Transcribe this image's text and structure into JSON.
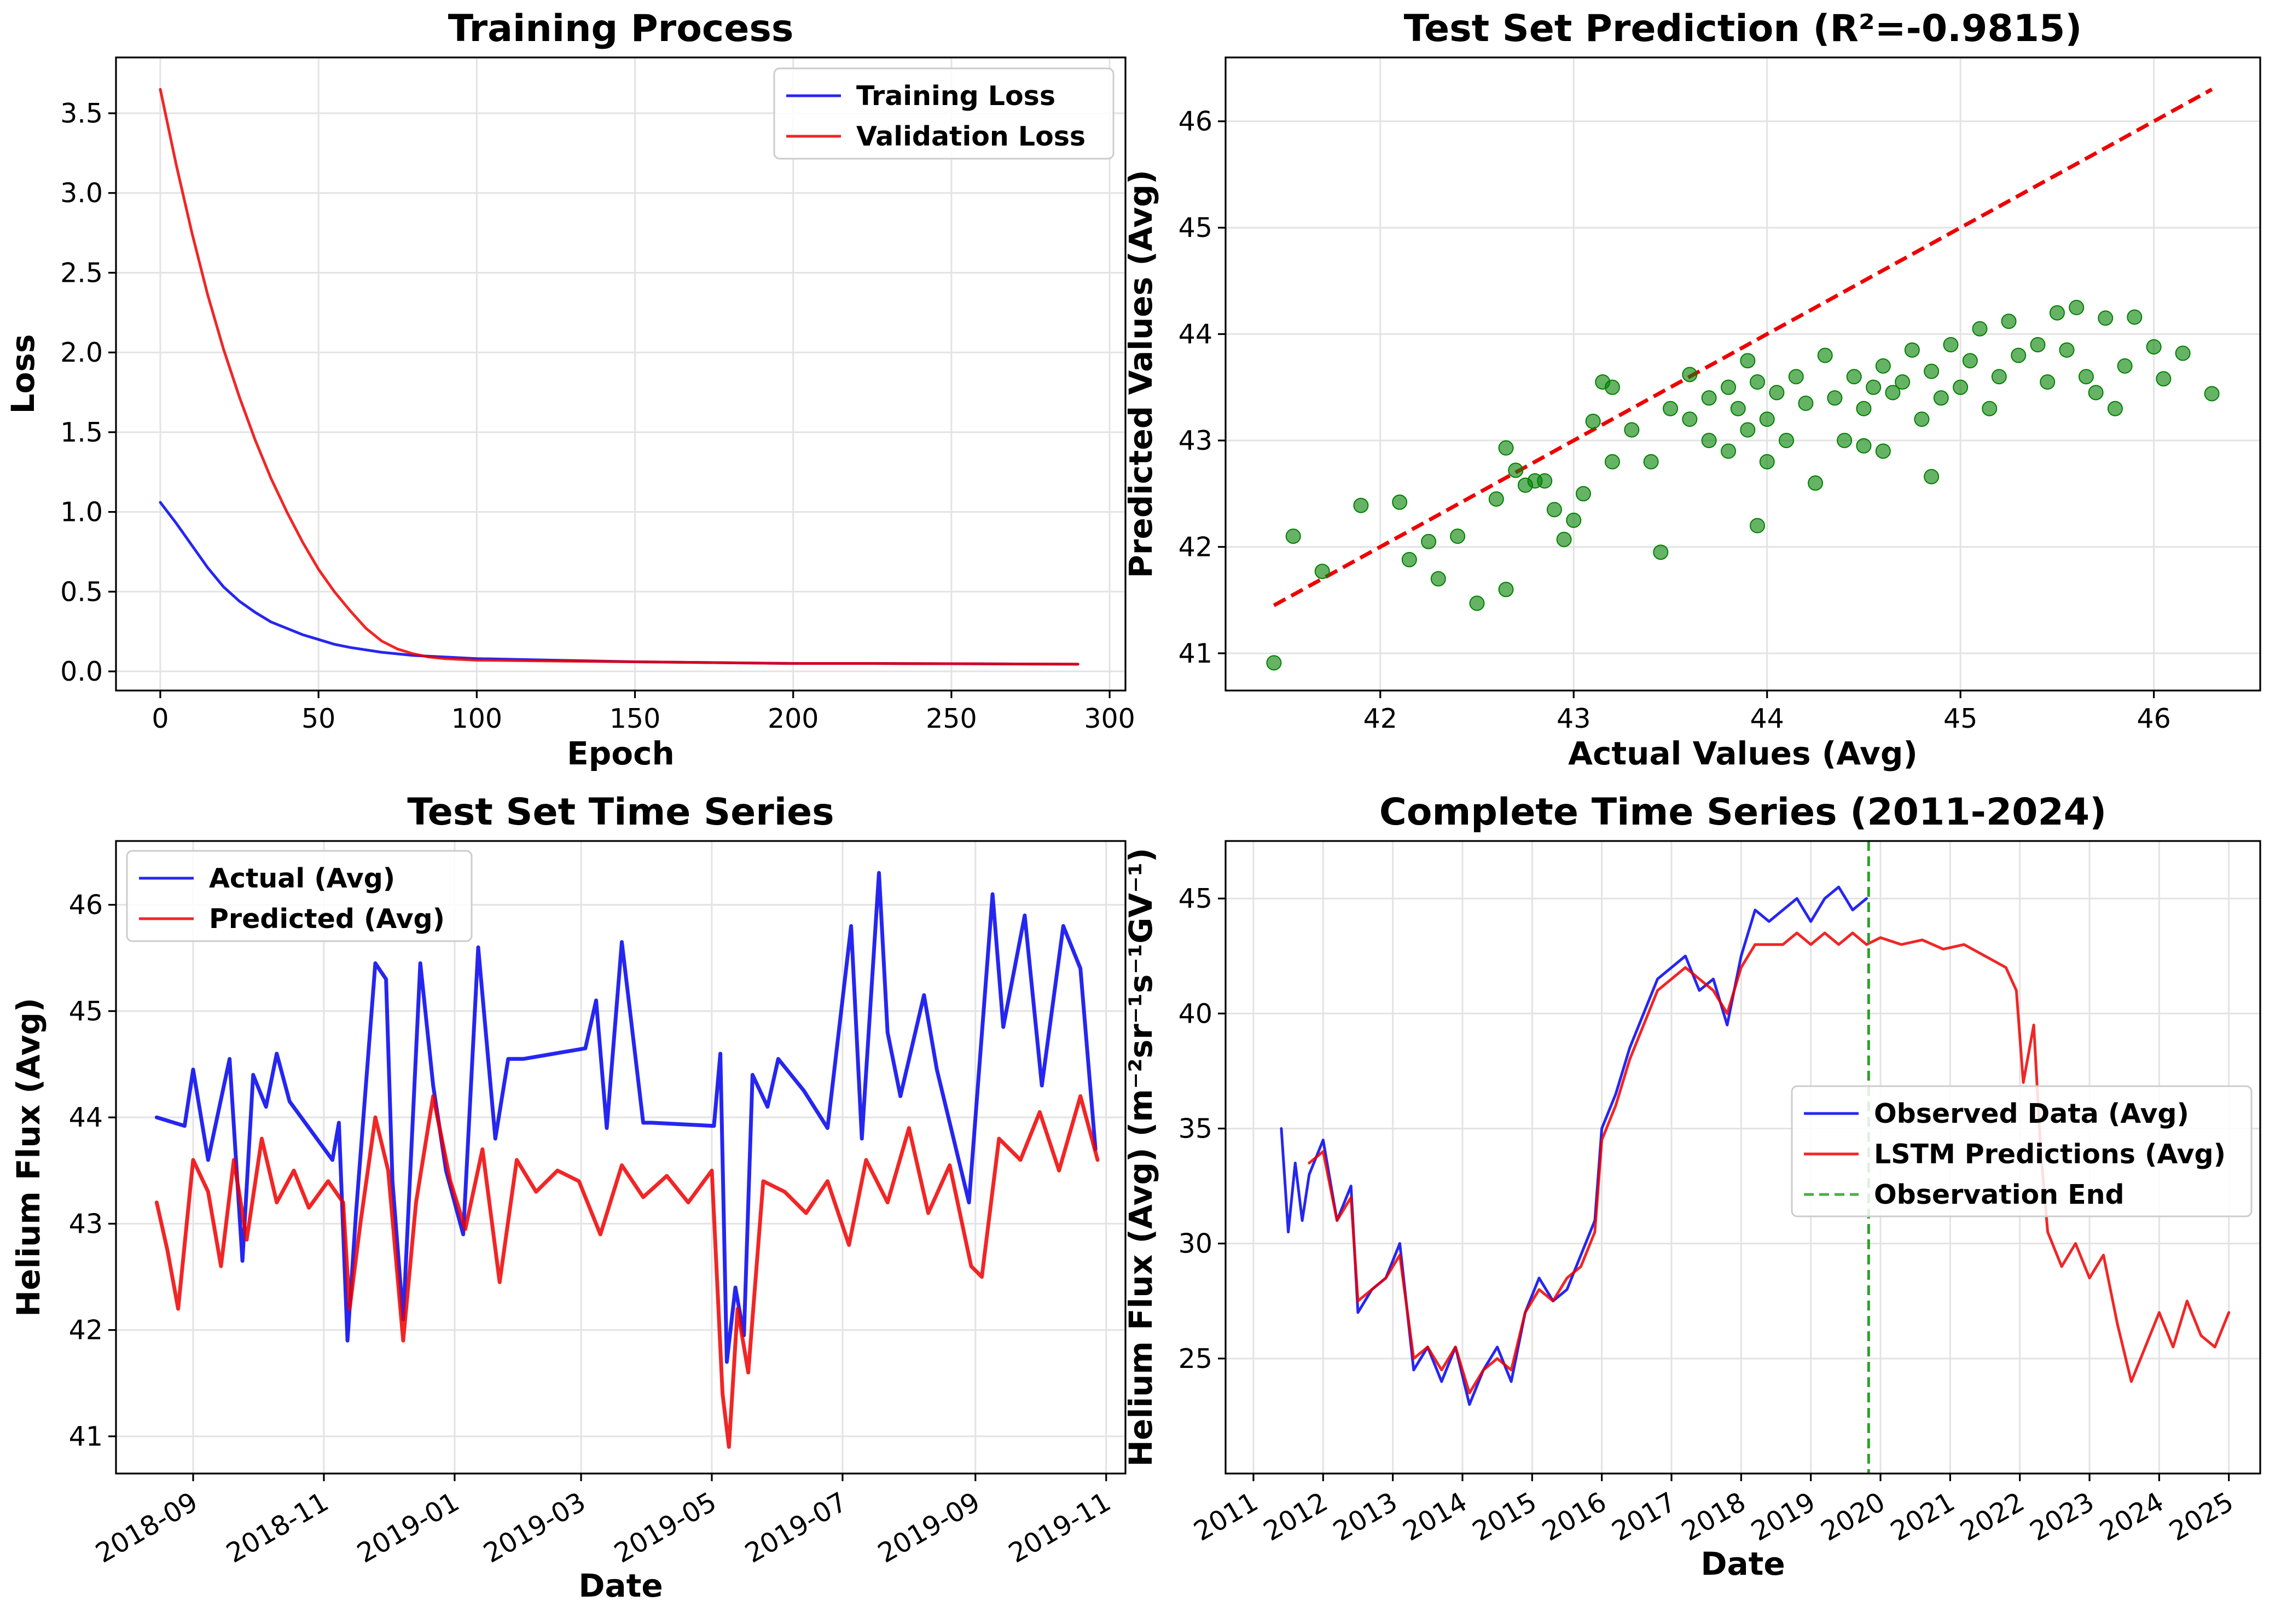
{
  "chart_data": [
    {
      "type": "line",
      "title": "Training Process",
      "xlabel": "Epoch",
      "ylabel": "Loss",
      "xlim": [
        -14,
        305
      ],
      "ylim": [
        -0.12,
        3.85
      ],
      "xticks": [
        0,
        50,
        100,
        150,
        200,
        250,
        300
      ],
      "yticks": [
        0.0,
        0.5,
        1.0,
        1.5,
        2.0,
        2.5,
        3.0,
        3.5
      ],
      "grid": true,
      "legend_position": "top-right",
      "series": [
        {
          "name": "Training Loss",
          "color": "#0000ee",
          "x": [
            0,
            5,
            10,
            15,
            20,
            25,
            30,
            35,
            40,
            45,
            50,
            55,
            60,
            70,
            80,
            90,
            100,
            125,
            150,
            175,
            200,
            225,
            250,
            275,
            290
          ],
          "values": [
            1.06,
            0.93,
            0.79,
            0.65,
            0.53,
            0.44,
            0.37,
            0.31,
            0.27,
            0.23,
            0.2,
            0.17,
            0.15,
            0.12,
            0.1,
            0.09,
            0.08,
            0.07,
            0.06,
            0.055,
            0.05,
            0.05,
            0.048,
            0.046,
            0.045
          ]
        },
        {
          "name": "Validation Loss",
          "color": "#ee0000",
          "x": [
            0,
            5,
            10,
            15,
            20,
            25,
            30,
            35,
            40,
            45,
            50,
            55,
            60,
            65,
            70,
            75,
            80,
            85,
            90,
            100,
            125,
            150,
            175,
            200,
            225,
            250,
            275,
            290
          ],
          "values": [
            3.65,
            3.18,
            2.75,
            2.36,
            2.02,
            1.72,
            1.45,
            1.21,
            1.0,
            0.81,
            0.64,
            0.5,
            0.38,
            0.27,
            0.19,
            0.14,
            0.11,
            0.09,
            0.08,
            0.07,
            0.065,
            0.06,
            0.055,
            0.05,
            0.05,
            0.048,
            0.046,
            0.045
          ]
        }
      ]
    },
    {
      "type": "scatter",
      "title": "Test Set Prediction (R²=-0.9815)",
      "xlabel": "Actual Values (Avg)",
      "ylabel": "Predicted Values (Avg)",
      "xlim": [
        41.2,
        46.55
      ],
      "ylim": [
        40.65,
        46.6
      ],
      "xticks": [
        42,
        43,
        44,
        45,
        46
      ],
      "yticks": [
        41,
        42,
        43,
        44,
        45,
        46
      ],
      "grid": true,
      "point_color": "#008000",
      "reference_line": {
        "x": [
          41.45,
          46.3
        ],
        "y": [
          41.45,
          46.3
        ],
        "color": "#ee0000",
        "style": "dashed"
      },
      "points": [
        [
          41.45,
          40.91
        ],
        [
          41.55,
          42.1
        ],
        [
          41.7,
          41.77
        ],
        [
          41.9,
          42.39
        ],
        [
          42.1,
          42.42
        ],
        [
          42.15,
          41.88
        ],
        [
          42.25,
          42.05
        ],
        [
          42.3,
          41.7
        ],
        [
          42.4,
          42.1
        ],
        [
          42.5,
          41.47
        ],
        [
          42.6,
          42.45
        ],
        [
          42.65,
          41.6
        ],
        [
          42.65,
          42.93
        ],
        [
          42.7,
          42.72
        ],
        [
          42.75,
          42.58
        ],
        [
          42.8,
          42.62
        ],
        [
          42.85,
          42.62
        ],
        [
          42.9,
          42.35
        ],
        [
          42.95,
          42.07
        ],
        [
          43.0,
          42.25
        ],
        [
          43.05,
          42.5
        ],
        [
          43.1,
          43.18
        ],
        [
          43.15,
          43.55
        ],
        [
          43.2,
          42.8
        ],
        [
          43.2,
          43.5
        ],
        [
          43.3,
          43.1
        ],
        [
          43.4,
          42.8
        ],
        [
          43.45,
          41.95
        ],
        [
          43.5,
          43.3
        ],
        [
          43.6,
          43.2
        ],
        [
          43.6,
          43.62
        ],
        [
          43.7,
          43.0
        ],
        [
          43.7,
          43.4
        ],
        [
          43.8,
          43.5
        ],
        [
          43.8,
          42.9
        ],
        [
          43.85,
          43.3
        ],
        [
          43.9,
          43.1
        ],
        [
          43.9,
          43.75
        ],
        [
          43.95,
          42.2
        ],
        [
          43.95,
          43.55
        ],
        [
          44.0,
          43.2
        ],
        [
          44.0,
          42.8
        ],
        [
          44.05,
          43.45
        ],
        [
          44.1,
          43.0
        ],
        [
          44.15,
          43.6
        ],
        [
          44.2,
          43.35
        ],
        [
          44.25,
          42.6
        ],
        [
          44.3,
          43.8
        ],
        [
          44.35,
          43.4
        ],
        [
          44.4,
          43.0
        ],
        [
          44.45,
          43.6
        ],
        [
          44.5,
          42.95
        ],
        [
          44.5,
          43.3
        ],
        [
          44.55,
          43.5
        ],
        [
          44.6,
          43.7
        ],
        [
          44.6,
          42.9
        ],
        [
          44.65,
          43.45
        ],
        [
          44.7,
          43.55
        ],
        [
          44.75,
          43.85
        ],
        [
          44.8,
          43.2
        ],
        [
          44.85,
          43.65
        ],
        [
          44.85,
          42.66
        ],
        [
          44.9,
          43.4
        ],
        [
          44.95,
          43.9
        ],
        [
          45.0,
          43.5
        ],
        [
          45.05,
          43.75
        ],
        [
          45.1,
          44.05
        ],
        [
          45.15,
          43.3
        ],
        [
          45.2,
          43.6
        ],
        [
          45.25,
          44.12
        ],
        [
          45.3,
          43.8
        ],
        [
          45.4,
          43.9
        ],
        [
          45.45,
          43.55
        ],
        [
          45.5,
          44.2
        ],
        [
          45.55,
          43.85
        ],
        [
          45.6,
          44.25
        ],
        [
          45.65,
          43.6
        ],
        [
          45.7,
          43.45
        ],
        [
          45.75,
          44.15
        ],
        [
          45.8,
          43.3
        ],
        [
          45.85,
          43.7
        ],
        [
          45.9,
          44.16
        ],
        [
          46.0,
          43.88
        ],
        [
          46.05,
          43.58
        ],
        [
          46.15,
          43.82
        ],
        [
          46.3,
          43.44
        ]
      ]
    },
    {
      "type": "line",
      "title": "Test Set Time Series",
      "xlabel": "Date",
      "ylabel": "Helium Flux (Avg)",
      "xlim": [
        "2018-07-27",
        "2019-11-10"
      ],
      "ylim": [
        40.65,
        46.6
      ],
      "xticks": [
        "2018-09",
        "2018-11",
        "2019-01",
        "2019-03",
        "2019-05",
        "2019-07",
        "2019-09",
        "2019-11"
      ],
      "yticks": [
        41,
        42,
        43,
        44,
        45,
        46
      ],
      "grid": true,
      "legend_position": "top-left",
      "series": [
        {
          "name": "Actual (Avg)",
          "color": "#0000ee",
          "x": [
            "2018-08-15",
            "2018-08-28",
            "2018-09-01",
            "2018-09-08",
            "2018-09-18",
            "2018-09-24",
            "2018-09-29",
            "2018-10-05",
            "2018-10-10",
            "2018-10-16",
            "2018-11-05",
            "2018-11-08",
            "2018-11-12",
            "2018-11-16",
            "2018-11-25",
            "2018-11-30",
            "2018-12-03",
            "2018-12-08",
            "2018-12-16",
            "2018-12-22",
            "2018-12-28",
            "2019-01-05",
            "2019-01-12",
            "2019-01-20",
            "2019-01-26",
            "2019-02-02",
            "2019-03-03",
            "2019-03-08",
            "2019-03-13",
            "2019-03-20",
            "2019-03-30",
            "2019-04-03",
            "2019-05-02",
            "2019-05-05",
            "2019-05-08",
            "2019-05-12",
            "2019-05-16",
            "2019-05-20",
            "2019-05-27",
            "2019-06-01",
            "2019-06-13",
            "2019-06-24",
            "2019-07-05",
            "2019-07-10",
            "2019-07-18",
            "2019-07-22",
            "2019-07-28",
            "2019-08-08",
            "2019-08-14",
            "2019-08-29",
            "2019-09-09",
            "2019-09-14",
            "2019-09-24",
            "2019-10-02",
            "2019-10-12",
            "2019-10-20",
            "2019-10-27"
          ],
          "values": [
            44.0,
            43.92,
            44.45,
            43.6,
            44.55,
            42.65,
            44.4,
            44.1,
            44.6,
            44.15,
            43.6,
            43.95,
            41.9,
            43.1,
            45.45,
            45.3,
            43.4,
            42.1,
            45.45,
            44.3,
            43.5,
            42.9,
            45.6,
            43.8,
            44.55,
            44.55,
            44.65,
            45.1,
            43.9,
            45.65,
            43.95,
            43.95,
            43.92,
            44.6,
            41.7,
            42.4,
            41.95,
            44.4,
            44.1,
            44.55,
            44.25,
            43.9,
            45.8,
            43.8,
            46.3,
            44.8,
            44.2,
            45.15,
            44.45,
            43.2,
            46.1,
            44.85,
            45.9,
            44.3,
            45.8,
            45.4,
            43.7
          ]
        },
        {
          "name": "Predicted (Avg)",
          "color": "#ee0000",
          "x": [
            "2018-08-15",
            "2018-08-20",
            "2018-08-25",
            "2018-09-01",
            "2018-09-08",
            "2018-09-14",
            "2018-09-20",
            "2018-09-26",
            "2018-10-03",
            "2018-10-10",
            "2018-10-18",
            "2018-10-25",
            "2018-11-03",
            "2018-11-10",
            "2018-11-13",
            "2018-11-18",
            "2018-11-25",
            "2018-12-01",
            "2018-12-08",
            "2018-12-14",
            "2018-12-22",
            "2018-12-30",
            "2019-01-06",
            "2019-01-14",
            "2019-01-22",
            "2019-01-30",
            "2019-02-08",
            "2019-02-18",
            "2019-02-28",
            "2019-03-10",
            "2019-03-20",
            "2019-03-30",
            "2019-04-10",
            "2019-04-20",
            "2019-05-01",
            "2019-05-06",
            "2019-05-09",
            "2019-05-13",
            "2019-05-18",
            "2019-05-25",
            "2019-06-04",
            "2019-06-14",
            "2019-06-24",
            "2019-07-04",
            "2019-07-12",
            "2019-07-22",
            "2019-08-01",
            "2019-08-10",
            "2019-08-20",
            "2019-08-30",
            "2019-09-04",
            "2019-09-12",
            "2019-09-22",
            "2019-10-01",
            "2019-10-10",
            "2019-10-20",
            "2019-10-28"
          ],
          "values": [
            43.2,
            42.75,
            42.2,
            43.6,
            43.3,
            42.6,
            43.6,
            42.85,
            43.8,
            43.2,
            43.5,
            43.15,
            43.4,
            43.2,
            42.2,
            43.0,
            44.0,
            43.5,
            41.9,
            43.2,
            44.2,
            43.4,
            42.95,
            43.7,
            42.45,
            43.6,
            43.3,
            43.5,
            43.4,
            42.9,
            43.55,
            43.25,
            43.45,
            43.2,
            43.5,
            41.4,
            40.9,
            42.2,
            41.6,
            43.4,
            43.3,
            43.1,
            43.4,
            42.8,
            43.6,
            43.2,
            43.9,
            43.1,
            43.55,
            42.6,
            42.5,
            43.8,
            43.6,
            44.05,
            43.5,
            44.2,
            43.6
          ]
        }
      ]
    },
    {
      "type": "line",
      "title": "Complete Time Series (2011-2024)",
      "xlabel": "Date",
      "ylabel": "Helium Flux (Avg) (m⁻²sr⁻¹s⁻¹GV⁻¹)",
      "xlim": [
        2010.6,
        2025.45
      ],
      "ylim": [
        20.0,
        47.5
      ],
      "xticks": [
        2011,
        2012,
        2013,
        2014,
        2015,
        2016,
        2017,
        2018,
        2019,
        2020,
        2021,
        2022,
        2023,
        2024,
        2025
      ],
      "yticks": [
        25,
        30,
        35,
        40,
        45
      ],
      "grid": true,
      "legend_position": "center-right",
      "observation_end": 2019.83,
      "observation_end_label": "Observation End",
      "observation_end_color": "#2ca02c",
      "series": [
        {
          "name": "Observed Data (Avg)",
          "color": "#0000ee",
          "x": [
            2011.4,
            2011.5,
            2011.6,
            2011.7,
            2011.8,
            2012.0,
            2012.2,
            2012.4,
            2012.5,
            2012.7,
            2012.9,
            2013.1,
            2013.3,
            2013.5,
            2013.7,
            2013.9,
            2014.1,
            2014.3,
            2014.5,
            2014.7,
            2014.9,
            2015.1,
            2015.3,
            2015.5,
            2015.7,
            2015.9,
            2016.0,
            2016.2,
            2016.4,
            2016.6,
            2016.8,
            2017.0,
            2017.2,
            2017.4,
            2017.6,
            2017.8,
            2018.0,
            2018.2,
            2018.4,
            2018.6,
            2018.8,
            2019.0,
            2019.2,
            2019.4,
            2019.6,
            2019.8
          ],
          "values": [
            35.0,
            30.5,
            33.5,
            31.0,
            33.0,
            34.5,
            31.0,
            32.5,
            27.0,
            28.0,
            28.5,
            30.0,
            24.5,
            25.5,
            24.0,
            25.5,
            23.0,
            24.5,
            25.5,
            24.0,
            27.0,
            28.5,
            27.5,
            28.0,
            29.5,
            31.0,
            35.0,
            36.5,
            38.5,
            40.0,
            41.5,
            42.0,
            42.5,
            41.0,
            41.5,
            39.5,
            42.5,
            44.5,
            44.0,
            44.5,
            45.0,
            44.0,
            45.0,
            45.5,
            44.5,
            45.0
          ]
        },
        {
          "name": "LSTM Predictions (Avg)",
          "color": "#ee0000",
          "x": [
            2011.8,
            2012.0,
            2012.2,
            2012.4,
            2012.5,
            2012.7,
            2012.9,
            2013.1,
            2013.3,
            2013.5,
            2013.7,
            2013.9,
            2014.1,
            2014.3,
            2014.5,
            2014.7,
            2014.9,
            2015.1,
            2015.3,
            2015.5,
            2015.7,
            2015.9,
            2016.0,
            2016.2,
            2016.4,
            2016.6,
            2016.8,
            2017.0,
            2017.2,
            2017.4,
            2017.6,
            2017.8,
            2018.0,
            2018.2,
            2018.4,
            2018.6,
            2018.8,
            2019.0,
            2019.2,
            2019.4,
            2019.6,
            2019.8,
            2020.0,
            2020.3,
            2020.6,
            2020.9,
            2021.2,
            2021.5,
            2021.8,
            2021.95,
            2022.05,
            2022.2,
            2022.3,
            2022.4,
            2022.6,
            2022.8,
            2023.0,
            2023.2,
            2023.4,
            2023.6,
            2023.8,
            2024.0,
            2024.2,
            2024.4,
            2024.6,
            2024.8,
            2025.0
          ],
          "values": [
            33.5,
            34.0,
            31.0,
            32.0,
            27.5,
            28.0,
            28.5,
            29.5,
            25.0,
            25.5,
            24.5,
            25.5,
            23.5,
            24.5,
            25.0,
            24.5,
            27.0,
            28.0,
            27.5,
            28.5,
            29.0,
            30.5,
            34.5,
            36.0,
            38.0,
            39.5,
            41.0,
            41.5,
            42.0,
            41.5,
            41.0,
            40.0,
            42.0,
            43.0,
            43.0,
            43.0,
            43.5,
            43.0,
            43.5,
            43.0,
            43.5,
            43.0,
            43.3,
            43.0,
            43.2,
            42.8,
            43.0,
            42.5,
            42.0,
            41.0,
            37.0,
            39.5,
            34.0,
            30.5,
            29.0,
            30.0,
            28.5,
            29.5,
            26.5,
            24.0,
            25.5,
            27.0,
            25.5,
            27.5,
            26.0,
            25.5,
            27.0
          ]
        }
      ]
    }
  ],
  "legends": [
    [
      "Training Loss",
      "Validation Loss"
    ],
    [
      "Actual (Avg)",
      "Predicted (Avg)"
    ],
    [
      "Observed Data (Avg)",
      "LSTM Predictions (Avg)",
      "Observation End"
    ]
  ]
}
